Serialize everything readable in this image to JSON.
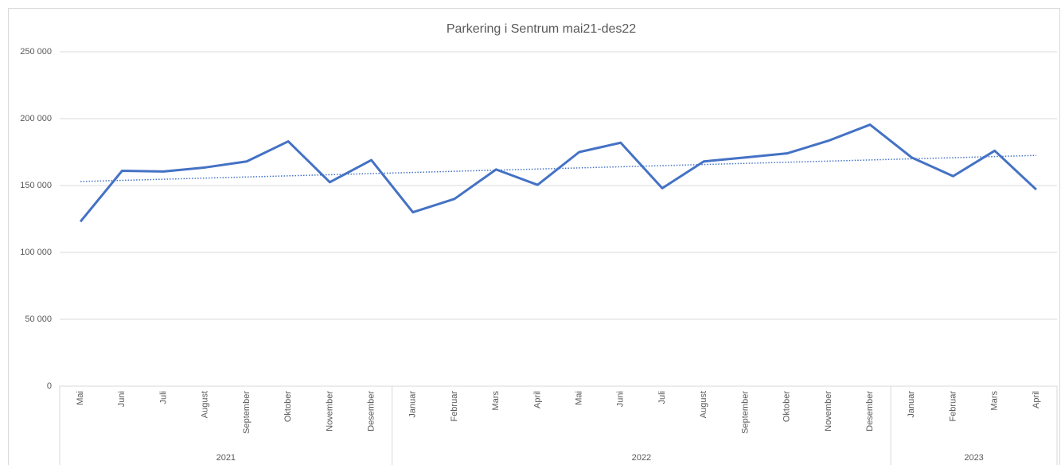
{
  "chart_data": {
    "type": "line",
    "title": "Parkering i Sentrum mai21-des22",
    "groups": [
      {
        "label": "2021",
        "categories": [
          "Mai",
          "Juni",
          "Juli",
          "August",
          "September",
          "Oktober",
          "November",
          "Desember"
        ]
      },
      {
        "label": "2022",
        "categories": [
          "Januar",
          "Februar",
          "Mars",
          "April",
          "Mai",
          "Juni",
          "Juli",
          "August",
          "September",
          "Oktober",
          "November",
          "Desember"
        ]
      },
      {
        "label": "2023",
        "categories": [
          "Januar",
          "Februar",
          "Mars",
          "April"
        ]
      }
    ],
    "values": [
      123000,
      161000,
      160500,
      163500,
      168000,
      183000,
      152500,
      169000,
      130000,
      140000,
      162000,
      150500,
      175000,
      182000,
      148000,
      168000,
      171000,
      174000,
      183500,
      195500,
      171000,
      157000,
      176000,
      147000
    ],
    "color": "#4472c4",
    "trendline": {
      "values": [
        153000,
        172500
      ],
      "color": "#4472c4"
    },
    "ylim": [
      0,
      250000
    ],
    "yticks": [
      0,
      {
        "value": 50000,
        "label": "50 000"
      },
      {
        "value": 100000,
        "label": "100 000"
      },
      {
        "value": 150000,
        "label": "150 000"
      },
      {
        "value": 200000,
        "label": "200 000"
      },
      {
        "value": 250000,
        "label": "250 000"
      }
    ],
    "grid": true
  }
}
